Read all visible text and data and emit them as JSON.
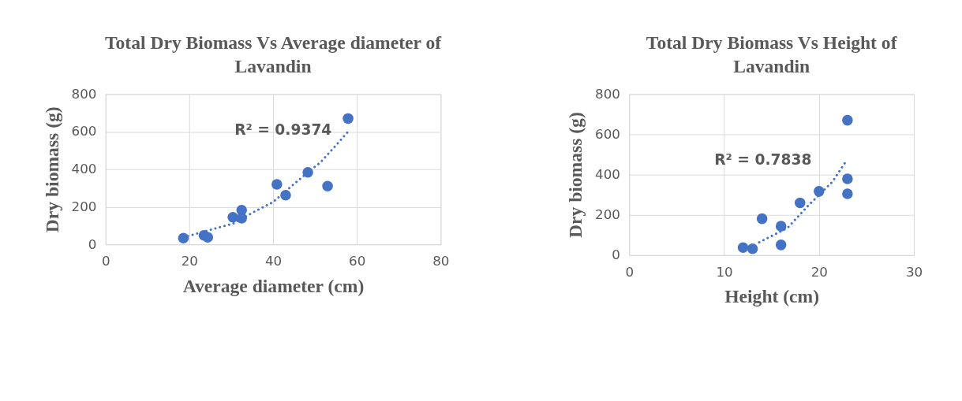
{
  "chart_data": [
    {
      "type": "scatter",
      "title": "Total Dry Biomass Vs Average diameter of Lavandin",
      "xlabel": "Average diameter (cm)",
      "ylabel": "Dry biomass (g)",
      "xlim": [
        0,
        80
      ],
      "xticks": [
        0,
        20,
        40,
        60,
        80
      ],
      "ylim": [
        0,
        800
      ],
      "yticks": [
        0,
        200,
        400,
        600,
        800
      ],
      "grid": true,
      "series": [
        {
          "type": "scatter",
          "marker": "circle",
          "color": "#4472c4",
          "x": [
            18.6,
            23.5,
            24.4,
            30.4,
            32.5,
            32.5,
            40.9,
            43.0,
            48.3,
            53.0,
            57.9
          ],
          "values": [
            33,
            48,
            37,
            144,
            182,
            139,
            319,
            262,
            383,
            310,
            670
          ]
        },
        {
          "type": "line",
          "line_style": "dotted",
          "color": "#4472c4",
          "x": [
            18.6,
            25.8,
            30.4,
            35.7,
            40.0,
            44.3,
            48.3,
            51.3,
            55.4,
            57.9
          ],
          "values": [
            37,
            82,
            110,
            176,
            225,
            308,
            383,
            436,
            537,
            600
          ]
        }
      ],
      "annotations": [
        "R² = 0.9374"
      ]
    },
    {
      "type": "scatter",
      "title": "Total Dry Biomass Vs Height of Lavandin",
      "xlabel": "Height (cm)",
      "ylabel": "Dry biomass (g)",
      "xlim": [
        0,
        30
      ],
      "xticks": [
        0,
        10,
        20,
        30
      ],
      "ylim": [
        0,
        800
      ],
      "yticks": [
        0,
        200,
        400,
        600,
        800
      ],
      "grid": true,
      "series": [
        {
          "type": "scatter",
          "marker": "circle",
          "color": "#4472c4",
          "x": [
            12,
            13,
            14,
            16,
            16,
            18,
            20,
            23,
            23,
            23
          ],
          "values": [
            38,
            32,
            181,
            144,
            51,
            260,
            317,
            379,
            305,
            670
          ]
        },
        {
          "type": "line",
          "line_style": "dotted",
          "color": "#4472c4",
          "x": [
            13.7,
            16.7,
            18.8,
            20.3,
            21.4,
            22.9
          ],
          "values": [
            64,
            136,
            243,
            313,
            364,
            470
          ]
        }
      ],
      "annotations": [
        "R² = 0.7838"
      ]
    }
  ]
}
